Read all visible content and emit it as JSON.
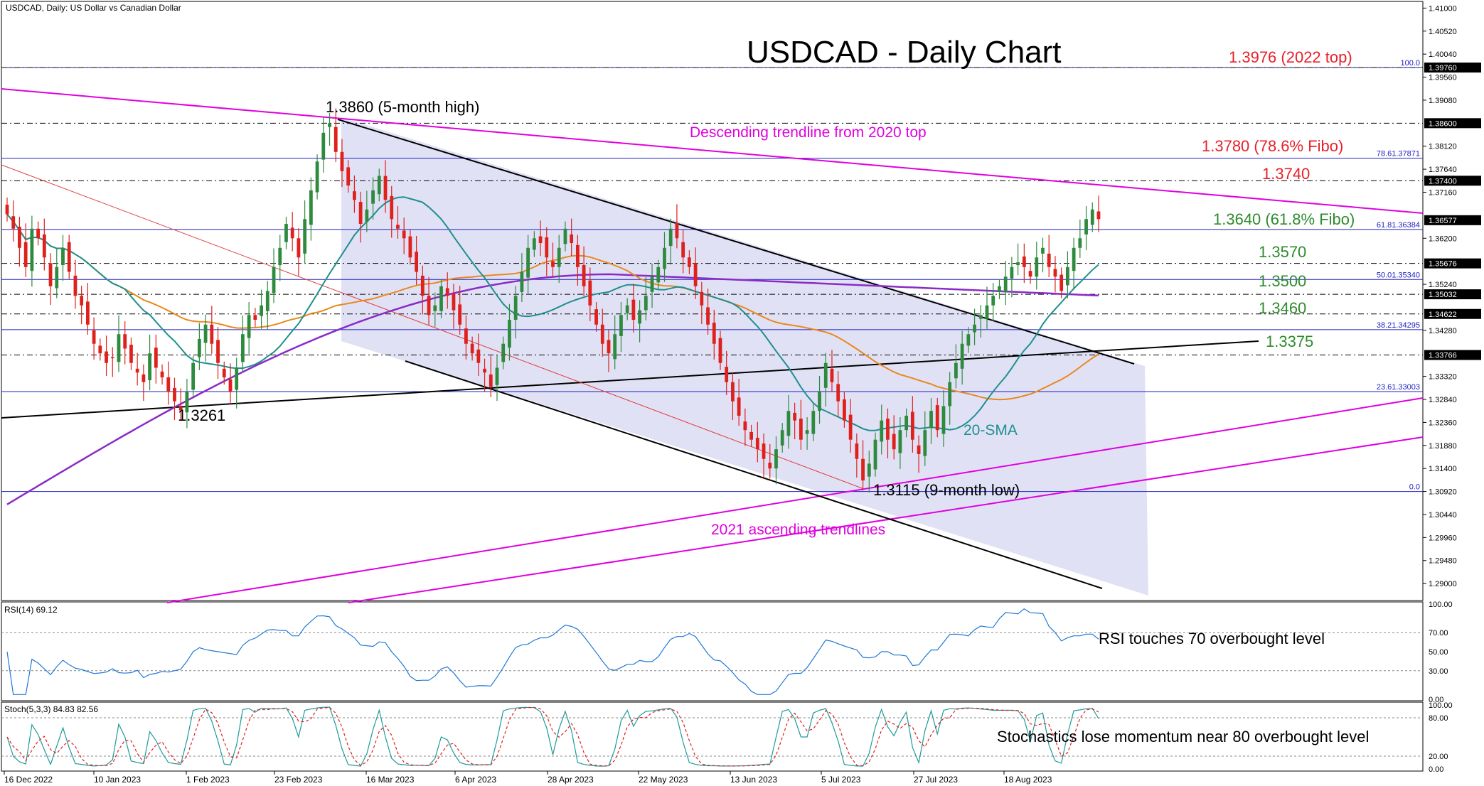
{
  "header": {
    "symbol_info": "USDCAD, Daily:  US Dollar vs Canadian Dollar",
    "title": "USDCAD - Daily Chart"
  },
  "colors": {
    "up": "#2e8b3e",
    "down": "#e0201b",
    "sma20": "#1f8f8f",
    "sma50": "#e8891c",
    "sma200": "#8a2bc7",
    "trend_magenta": "#e000e0",
    "fibo_blue": "#2020c0",
    "channel_fill": "#dcdcf5",
    "red_label": "#e8202a",
    "green_label": "#2e8b2e"
  },
  "price_axis": {
    "ticks": [
      "1.41000",
      "1.40520",
      "1.40040",
      "1.39560",
      "1.39080",
      "1.38120",
      "1.37640",
      "1.37160",
      "1.36200",
      "1.35240",
      "1.34280",
      "1.33320",
      "1.32840",
      "1.32360",
      "1.31880",
      "1.31400",
      "1.30920",
      "1.30440",
      "1.29960",
      "1.29480",
      "1.29000"
    ],
    "highlight_labels": [
      "1.39760",
      "1.38600",
      "1.37400",
      "1.36577",
      "1.35676",
      "1.35032",
      "1.34622",
      "1.33766"
    ]
  },
  "date_axis": [
    "16 Dec 2022",
    "10 Jan 2023",
    "1 Feb 2023",
    "23 Feb 2023",
    "16 Mar 2023",
    "6 Apr 2023",
    "28 Apr 2023",
    "22 May 2023",
    "13 Jun 2023",
    "5 Jul 2023",
    "27 Jul 2023",
    "18 Aug 2023"
  ],
  "fibo": [
    {
      "label": "100.0",
      "price": 1.3976
    },
    {
      "label": "78.61.37871",
      "price": 1.3787
    },
    {
      "label": "61.81.36384",
      "price": 1.36384
    },
    {
      "label": "50.01.35340",
      "price": 1.3534
    },
    {
      "label": "38.21.34295",
      "price": 1.34295
    },
    {
      "label": "23.61.33003",
      "price": 1.33003
    },
    {
      "label": "0.0",
      "price": 1.3092
    }
  ],
  "annotations": {
    "top2022": "1.3976 (2022 top)",
    "high5m": "1.3860 (5-month high)",
    "desc_trend": "Descending trendline from 2020 top",
    "fibo786": "1.3780 (78.6% Fibo)",
    "l1374": "1.3740",
    "fibo618": "1.3640 (61.8% Fibo)",
    "l1357": "1.3570",
    "l1350": "1.3500",
    "l1346": "1.3460",
    "l13375": "1.3375",
    "low1261": "1.3261",
    "sma20": "20-SMA",
    "low9m": "1.3115 (9-month low)",
    "asc2021": "2021 ascending trendlines"
  },
  "rsi_panel": {
    "label": "RSI(14) 69.12",
    "ticks": [
      "100.00",
      "70.00",
      "50.00",
      "30.00",
      "0.00"
    ],
    "note": "RSI touches 70 overbought level"
  },
  "stoch_panel": {
    "label": "Stoch(5,3,3) 84.83 82.56",
    "ticks": [
      "100.00",
      "80.00",
      "20.00",
      "0.00"
    ],
    "note": "Stochastics lose momentum near 80 overbought level"
  },
  "chart_data": {
    "type": "candlestick",
    "title": "USDCAD - Daily Chart",
    "x_range": [
      "16 Dec 2022",
      "28 Aug 2023"
    ],
    "ylim": [
      1.2875,
      1.4105
    ],
    "ohlc_close": [
      1.367,
      1.364,
      1.36,
      1.356,
      1.364,
      1.362,
      1.358,
      1.352,
      1.356,
      1.36,
      1.355,
      1.35,
      1.348,
      1.344,
      1.34,
      1.338,
      1.336,
      1.337,
      1.342,
      1.339,
      1.336,
      1.334,
      1.332,
      1.338,
      1.335,
      1.333,
      1.33,
      1.328,
      1.3261,
      1.33,
      1.336,
      1.341,
      1.344,
      1.34,
      1.336,
      1.333,
      1.33,
      1.335,
      1.342,
      1.346,
      1.345,
      1.348,
      1.351,
      1.356,
      1.36,
      1.365,
      1.362,
      1.358,
      1.366,
      1.372,
      1.378,
      1.384,
      1.386,
      1.38,
      1.376,
      1.373,
      1.37,
      1.365,
      1.368,
      1.372,
      1.375,
      1.37,
      1.366,
      1.364,
      1.362,
      1.358,
      1.355,
      1.35,
      1.346,
      1.348,
      1.352,
      1.35,
      1.347,
      1.344,
      1.34,
      1.338,
      1.336,
      1.334,
      1.331,
      1.335,
      1.34,
      1.345,
      1.35,
      1.355,
      1.36,
      1.362,
      1.361,
      1.358,
      1.356,
      1.36,
      1.364,
      1.361,
      1.356,
      1.352,
      1.348,
      1.344,
      1.34,
      1.338,
      1.342,
      1.346,
      1.348,
      1.345,
      1.347,
      1.35,
      1.354,
      1.356,
      1.36,
      1.364,
      1.362,
      1.358,
      1.356,
      1.352,
      1.348,
      1.344,
      1.34,
      1.336,
      1.332,
      1.328,
      1.325,
      1.322,
      1.32,
      1.318,
      1.316,
      1.314,
      1.318,
      1.322,
      1.326,
      1.324,
      1.32,
      1.322,
      1.326,
      1.33,
      1.336,
      1.332,
      1.328,
      1.324,
      1.32,
      1.316,
      1.3115,
      1.315,
      1.32,
      1.324,
      1.32,
      1.318,
      1.322,
      1.325,
      1.32,
      1.317,
      1.322,
      1.326,
      1.322,
      1.327,
      1.332,
      1.336,
      1.34,
      1.342,
      1.344,
      1.346,
      1.348,
      1.35,
      1.352,
      1.354,
      1.356,
      1.357,
      1.356,
      1.354,
      1.358,
      1.36,
      1.356,
      1.354,
      1.351,
      1.356,
      1.36,
      1.362,
      1.366,
      1.368,
      1.366
    ]
  }
}
